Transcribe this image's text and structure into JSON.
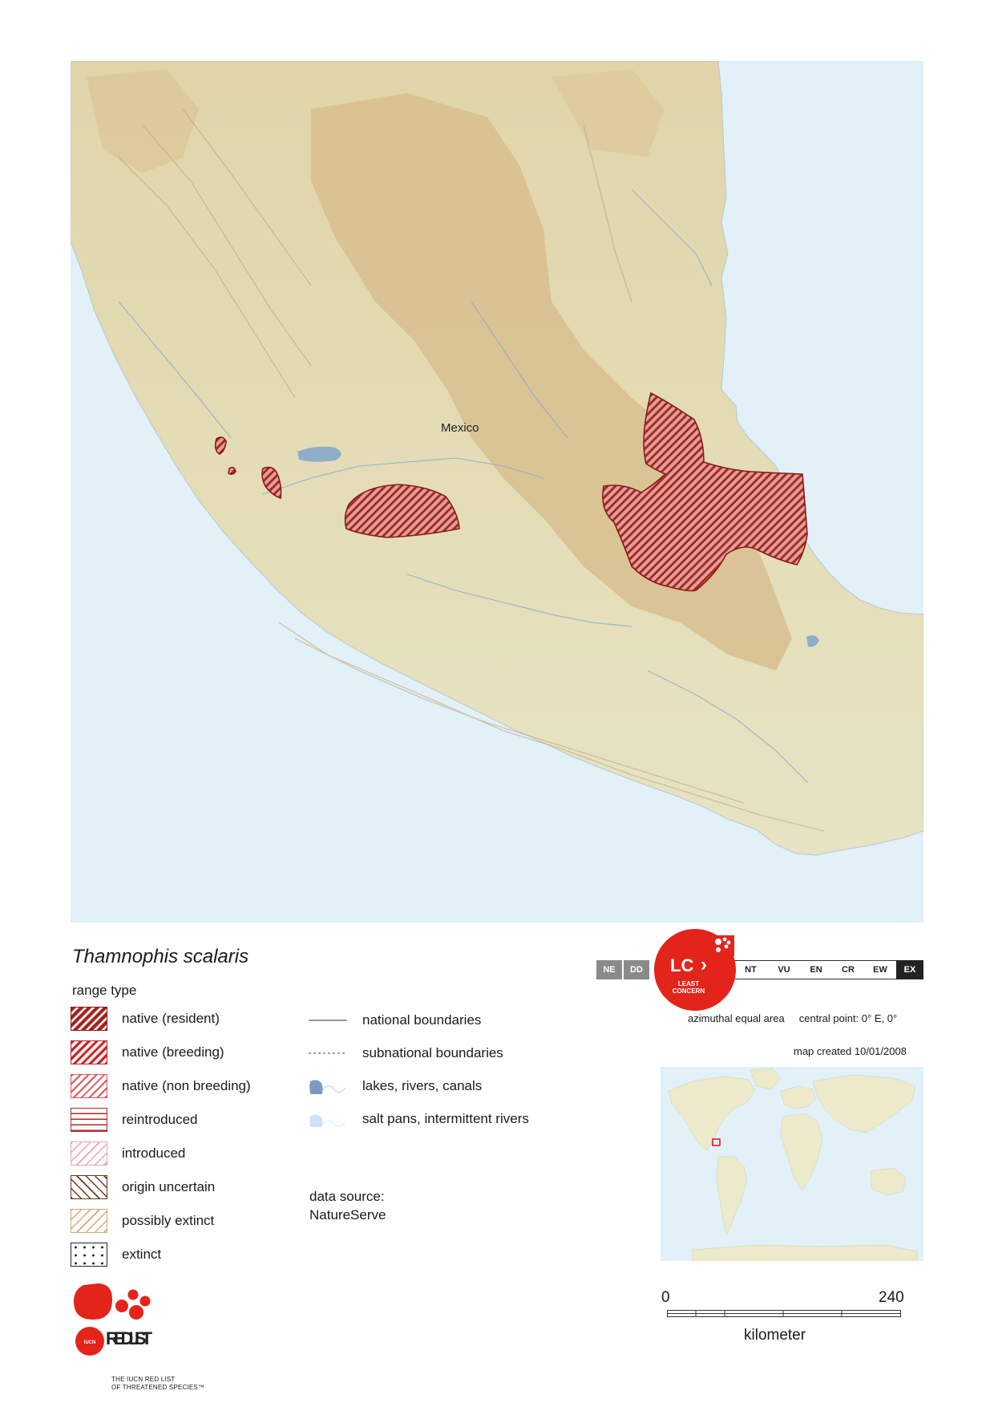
{
  "map": {
    "country_label": "Mexico",
    "colors": {
      "ocean": "#e2f0f7",
      "land_low": "#e6e2c0",
      "land_high": "#d8bd8c",
      "water": "#8fadc9",
      "range_stroke": "#8b1a1a",
      "range_fill": "#b82e2e"
    }
  },
  "species": "Thamnophis scalaris",
  "legend": {
    "title": "range type",
    "items": [
      {
        "label": "native (resident)",
        "pattern": "hatch-dense-dark-red"
      },
      {
        "label": "native (breeding)",
        "pattern": "hatch-red"
      },
      {
        "label": "native (non breeding)",
        "pattern": "hatch-light-red"
      },
      {
        "label": "reintroduced",
        "pattern": "horizontal-red"
      },
      {
        "label": "introduced",
        "pattern": "hatch-pink"
      },
      {
        "label": "origin uncertain",
        "pattern": "backhatch-brown"
      },
      {
        "label": "possibly extinct",
        "pattern": "hatch-tan"
      },
      {
        "label": "extinct",
        "pattern": "dots"
      }
    ],
    "boundaries": [
      {
        "label": "national boundaries"
      },
      {
        "label": "subnational boundaries"
      },
      {
        "label": "lakes, rivers, canals"
      },
      {
        "label": "salt pans, intermittent rivers"
      }
    ]
  },
  "data_source": {
    "label": "data source:",
    "value": "NatureServe"
  },
  "status": {
    "categories": [
      "NE",
      "DD",
      "LC",
      "NT",
      "VU",
      "EN",
      "CR",
      "EW",
      "EX"
    ],
    "current": "LC",
    "current_text": "LEAST CONCERN",
    "accent": "#e3241b"
  },
  "projection": "azimuthal equal area     central point: 0° E, 0°",
  "map_created": "map created 10/01/2008",
  "scale": {
    "min": "0",
    "max": "240",
    "unit": "kilometer"
  },
  "logo": {
    "text": "RED LIST",
    "badge": "IUCN",
    "tagline_1": "THE IUCN RED LIST",
    "tagline_2": "OF THREATENED SPECIES™"
  }
}
